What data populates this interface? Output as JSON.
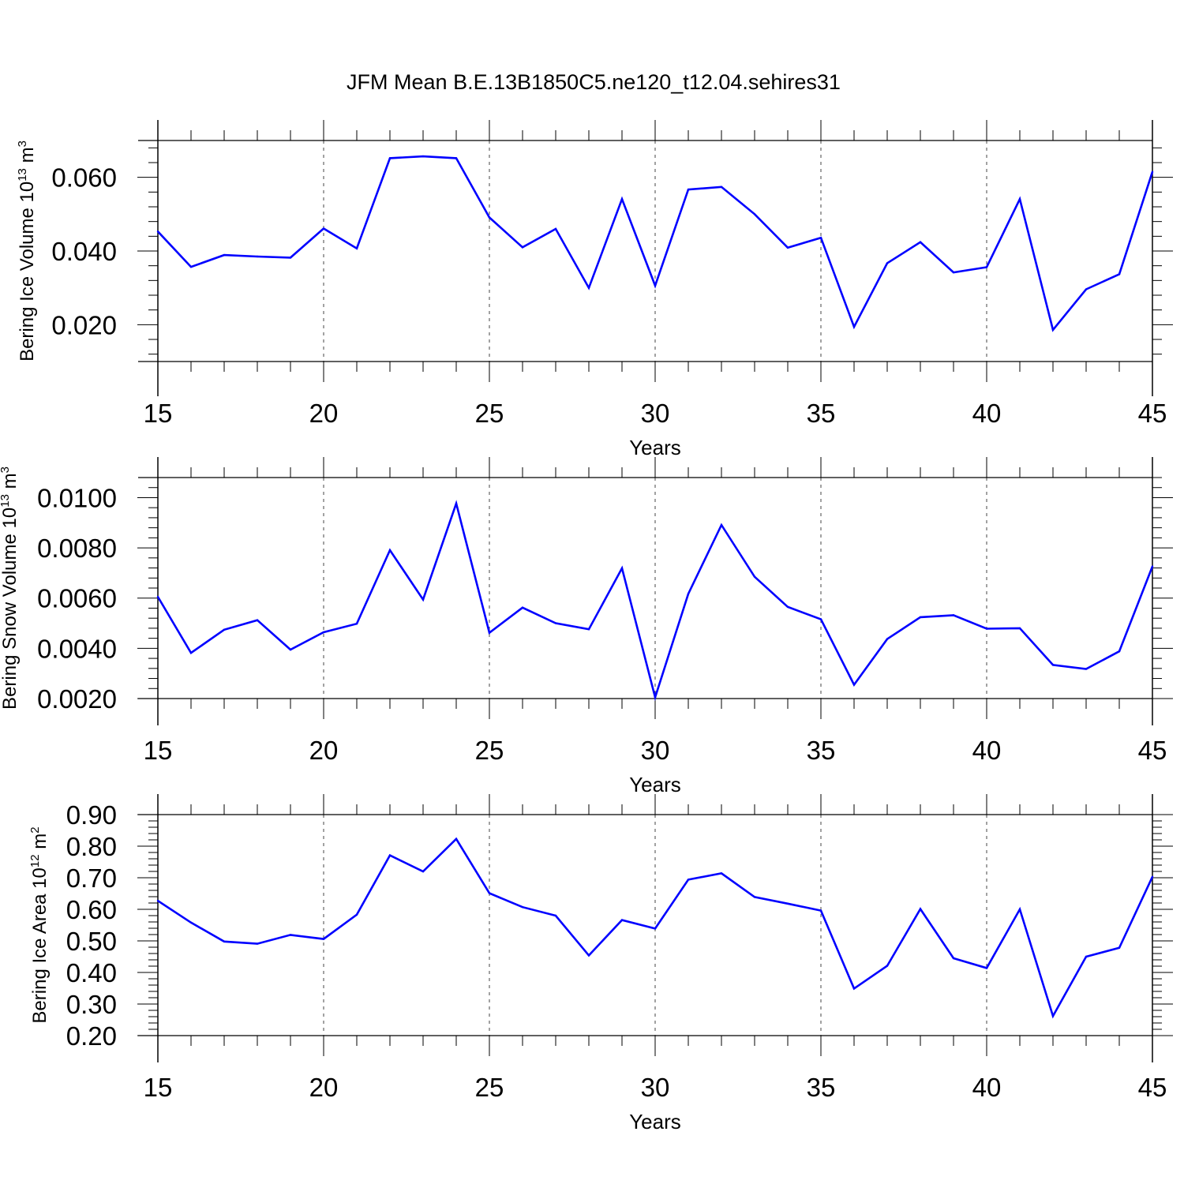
{
  "title": "JFM Mean B.E.13B1850C5.ne120_t12.04.sehires31",
  "line_color": "#0000ff",
  "chart_data": [
    {
      "type": "line",
      "ylabel": {
        "main": "Bering Ice Volume 10",
        "sup": "13",
        "unit": " m",
        "unit_sup": "3"
      },
      "xlabel": "Years",
      "xlim": [
        15,
        45
      ],
      "ylim": [
        0.01,
        0.07
      ],
      "x_ticks": [
        15,
        20,
        25,
        30,
        35,
        40,
        45
      ],
      "y_ticks": [
        "0.020",
        "0.040",
        "0.060"
      ],
      "x": [
        15,
        16,
        17,
        18,
        19,
        20,
        21,
        22,
        23,
        24,
        25,
        26,
        27,
        28,
        29,
        30,
        31,
        32,
        33,
        34,
        35,
        36,
        37,
        38,
        39,
        40,
        41,
        42,
        43,
        44,
        45
      ],
      "y": [
        0.0453,
        0.0357,
        0.0389,
        0.0385,
        0.0382,
        0.0461,
        0.0407,
        0.0652,
        0.0657,
        0.0652,
        0.0491,
        0.041,
        0.046,
        0.03,
        0.0541,
        0.0306,
        0.0567,
        0.0574,
        0.05,
        0.0409,
        0.0436,
        0.0194,
        0.0367,
        0.0424,
        0.0342,
        0.0356,
        0.0541,
        0.0186,
        0.0296,
        0.0337,
        0.0615
      ]
    },
    {
      "type": "line",
      "ylabel": {
        "main": "Bering Snow Volume 10",
        "sup": "13",
        "unit": " m",
        "unit_sup": "3"
      },
      "xlabel": "Years",
      "xlim": [
        15,
        45
      ],
      "ylim": [
        0.002,
        0.0108
      ],
      "x_ticks": [
        15,
        20,
        25,
        30,
        35,
        40,
        45
      ],
      "y_ticks": [
        "0.0020",
        "0.0040",
        "0.0060",
        "0.0080",
        "0.0100"
      ],
      "x": [
        15,
        16,
        17,
        18,
        19,
        20,
        21,
        22,
        23,
        24,
        25,
        26,
        27,
        28,
        29,
        30,
        31,
        32,
        33,
        34,
        35,
        36,
        37,
        38,
        39,
        40,
        41,
        42,
        43,
        44,
        45
      ],
      "y": [
        0.00605,
        0.00382,
        0.00474,
        0.00512,
        0.00395,
        0.00464,
        0.00498,
        0.00791,
        0.00594,
        0.00977,
        0.00462,
        0.00562,
        0.005,
        0.00476,
        0.00719,
        0.00205,
        0.00617,
        0.00891,
        0.00685,
        0.00565,
        0.00516,
        0.00255,
        0.00437,
        0.00524,
        0.00532,
        0.00478,
        0.0048,
        0.00334,
        0.00318,
        0.00388,
        0.00726
      ]
    },
    {
      "type": "line",
      "ylabel": {
        "main": "Bering Ice Area 10",
        "sup": "12",
        "unit": " m",
        "unit_sup": "2"
      },
      "xlabel": "Years",
      "xlim": [
        15,
        45
      ],
      "ylim": [
        0.2,
        0.9
      ],
      "x_ticks": [
        15,
        20,
        25,
        30,
        35,
        40,
        45
      ],
      "y_ticks": [
        "0.20",
        "0.30",
        "0.40",
        "0.50",
        "0.60",
        "0.70",
        "0.80",
        "0.90"
      ],
      "x": [
        15,
        16,
        17,
        18,
        19,
        20,
        21,
        22,
        23,
        24,
        25,
        26,
        27,
        28,
        29,
        30,
        31,
        32,
        33,
        34,
        35,
        36,
        37,
        38,
        39,
        40,
        41,
        42,
        43,
        44,
        45
      ],
      "y": [
        0.627,
        0.558,
        0.498,
        0.491,
        0.519,
        0.506,
        0.583,
        0.771,
        0.72,
        0.823,
        0.651,
        0.607,
        0.58,
        0.454,
        0.566,
        0.539,
        0.694,
        0.714,
        0.639,
        0.618,
        0.596,
        0.349,
        0.421,
        0.601,
        0.445,
        0.414,
        0.6,
        0.262,
        0.45,
        0.478,
        0.703
      ]
    }
  ]
}
